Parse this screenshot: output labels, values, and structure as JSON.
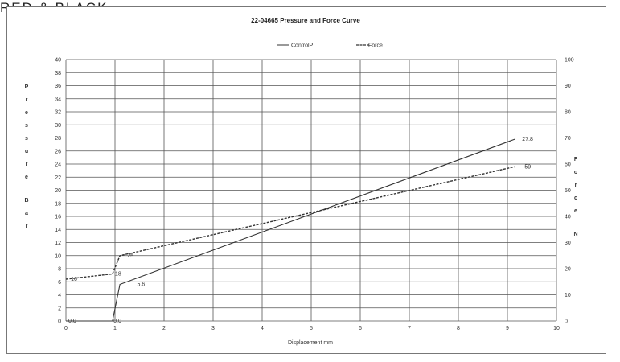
{
  "caption": "RED & BLACK",
  "chart_data": {
    "type": "line",
    "title": "22-04665 Pressure and Force Curve",
    "xlabel": "Displacement mm",
    "ylabel_left": "Pressure Bar",
    "ylabel_right": "Force N",
    "xlim": [
      0,
      10
    ],
    "ylim_left": [
      0,
      40
    ],
    "ylim_right": [
      0,
      100
    ],
    "x_ticks": [
      "0",
      "1",
      "2",
      "3",
      "4",
      "5",
      "6",
      "7",
      "8",
      "9",
      "10"
    ],
    "y_left_ticks": [
      "0",
      "2",
      "4",
      "6",
      "8",
      "10",
      "12",
      "14",
      "16",
      "18",
      "20",
      "22",
      "24",
      "26",
      "28",
      "30",
      "32",
      "34",
      "36",
      "38",
      "40"
    ],
    "y_right_ticks": [
      "0",
      "10",
      "20",
      "30",
      "40",
      "50",
      "60",
      "70",
      "80",
      "90",
      "100"
    ],
    "grid": true,
    "legend": "top-center",
    "series": [
      {
        "name": "ControlP",
        "axis": "left",
        "style": "solid",
        "x": [
          0,
          0.95,
          1.1,
          9.15
        ],
        "y": [
          0,
          0,
          5.6,
          27.8
        ]
      },
      {
        "name": "Force",
        "axis": "right",
        "style": "dashed",
        "x": [
          0,
          0.95,
          1.1,
          9.15
        ],
        "y": [
          16,
          18,
          25,
          59
        ]
      }
    ],
    "annotations": [
      {
        "text": "0.0",
        "x": 0.05,
        "y": 0,
        "axis": "left"
      },
      {
        "text": "0.0",
        "x": 0.97,
        "y": 0,
        "axis": "left"
      },
      {
        "text": "5.6",
        "x": 1.45,
        "y": 5.6,
        "axis": "left"
      },
      {
        "text": "27.8",
        "x": 9.3,
        "y": 27.8,
        "axis": "left"
      },
      {
        "text": "16",
        "x": 0.1,
        "y": 16,
        "axis": "right"
      },
      {
        "text": "18",
        "x": 1.0,
        "y": 18,
        "axis": "right"
      },
      {
        "text": "25",
        "x": 1.25,
        "y": 25,
        "axis": "right"
      },
      {
        "text": "59",
        "x": 9.35,
        "y": 59,
        "axis": "right"
      }
    ]
  }
}
